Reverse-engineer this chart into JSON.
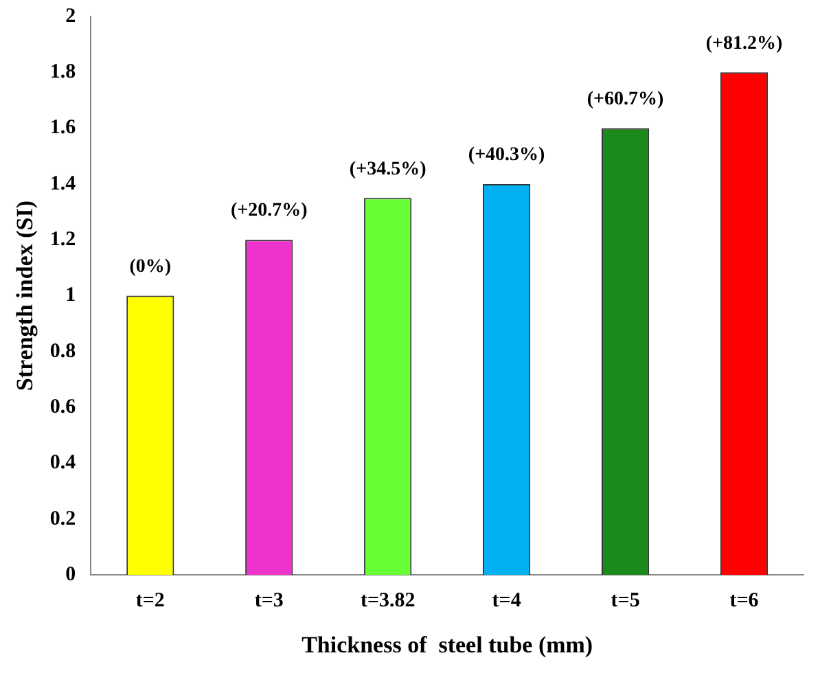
{
  "chart_data": {
    "type": "bar",
    "xlabel": "Thickness of  steel tube (mm)",
    "ylabel": "Strength index (SI)",
    "categories": [
      "t=2",
      "t=3",
      "t=3.82",
      "t=4",
      "t=5",
      "t=6"
    ],
    "values": [
      1.0,
      1.2,
      1.35,
      1.4,
      1.6,
      1.8
    ],
    "colors": [
      "#ffff00",
      "#ee33cc",
      "#66ff33",
      "#00b0f0",
      "#1a8a1a",
      "#ff0000"
    ],
    "annotations": [
      {
        "text": "(0%)",
        "x": "t=2",
        "y": 1.0
      },
      {
        "text": "(+20.7%)",
        "x": "t=3",
        "y": 1.2
      },
      {
        "text": "(+34.5%)",
        "x": "t=3.82",
        "y": 1.35
      },
      {
        "text": "(+40.3%)",
        "x": "t=4",
        "y": 1.4
      },
      {
        "text": "(+60.7%)",
        "x": "t=5",
        "y": 1.6
      },
      {
        "text": "(+81.2%)",
        "x": "t=6",
        "y": 1.8
      }
    ],
    "ylim": [
      0,
      2
    ],
    "yticks": [
      0,
      0.2,
      0.4,
      0.6,
      0.8,
      1,
      1.2,
      1.4,
      1.6,
      1.8,
      2
    ],
    "grid": false,
    "legend": false
  }
}
